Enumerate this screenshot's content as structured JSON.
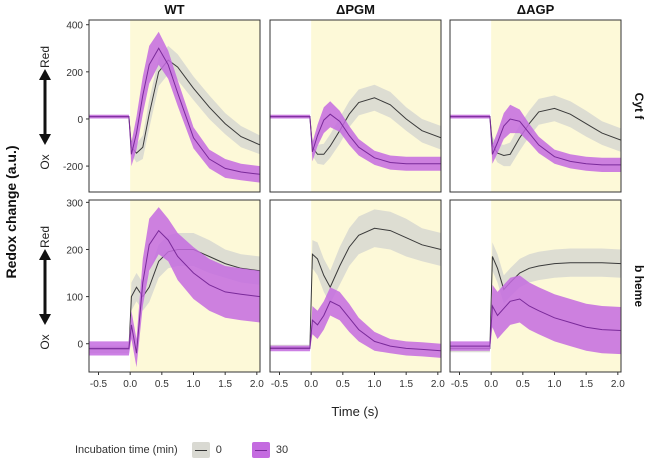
{
  "y_title": "Redox change (a.u.)",
  "x_title": "Time (s)",
  "column_titles": [
    "WT",
    "ΔPGM",
    "ΔAGP"
  ],
  "row_titles": [
    "Cyt f",
    "b heme"
  ],
  "arrow_labels": {
    "top": "Red",
    "bottom": "Ox"
  },
  "legend": {
    "title": "Incubation time (min)",
    "items": [
      "0",
      "30"
    ]
  },
  "colors": {
    "band0": "#d9d9d2",
    "line0": "#3a3a3a",
    "band1": "#c46be0",
    "line1": "#7a2a9a",
    "shade": "#fdf9d8"
  },
  "chart_data": [
    {
      "type": "line",
      "row": "Cyt f",
      "x_ticks": [
        "-0.5",
        "0.0",
        "0.5",
        "1.0",
        "1.5",
        "2.0"
      ],
      "xlim": [
        -0.65,
        2.05
      ],
      "y_ticks": [
        "400",
        "200",
        "0",
        "-200"
      ],
      "ylim": [
        -310,
        420
      ],
      "shaded_from": 0.0,
      "panels": [
        {
          "column": "WT",
          "series": [
            {
              "name": "0",
              "x": [
                -0.65,
                -0.02,
                0.02,
                0.1,
                0.2,
                0.3,
                0.45,
                0.6,
                0.75,
                1.0,
                1.25,
                1.5,
                1.75,
                2.05
              ],
              "y": [
                10,
                10,
                -120,
                -145,
                -120,
                20,
                200,
                250,
                220,
                130,
                50,
                -20,
                -75,
                -110
              ],
              "band": [
                8,
                8,
                30,
                40,
                50,
                60,
                60,
                60,
                55,
                50,
                50,
                45,
                45,
                40
              ]
            },
            {
              "name": "30",
              "x": [
                -0.65,
                -0.02,
                0.02,
                0.1,
                0.2,
                0.3,
                0.45,
                0.6,
                0.75,
                1.0,
                1.25,
                1.5,
                1.75,
                2.05
              ],
              "y": [
                10,
                10,
                -150,
                -60,
                100,
                230,
                300,
                230,
                110,
                -80,
                -170,
                -210,
                -225,
                -235
              ],
              "band": [
                8,
                8,
                50,
                70,
                80,
                80,
                70,
                60,
                55,
                45,
                40,
                40,
                35,
                35
              ]
            }
          ]
        },
        {
          "column": "ΔPGM",
          "series": [
            {
              "name": "0",
              "x": [
                -0.65,
                -0.02,
                0.02,
                0.1,
                0.2,
                0.3,
                0.45,
                0.6,
                0.75,
                1.0,
                1.25,
                1.5,
                1.75,
                2.05
              ],
              "y": [
                10,
                10,
                -120,
                -150,
                -150,
                -115,
                -50,
                20,
                70,
                90,
                60,
                0,
                -50,
                -80
              ],
              "band": [
                8,
                8,
                35,
                40,
                45,
                50,
                55,
                55,
                55,
                55,
                55,
                50,
                50,
                50
              ]
            },
            {
              "name": "30",
              "x": [
                -0.65,
                -0.02,
                0.02,
                0.1,
                0.2,
                0.3,
                0.45,
                0.6,
                0.75,
                1.0,
                1.25,
                1.5,
                1.75,
                2.05
              ],
              "y": [
                10,
                10,
                -140,
                -70,
                -5,
                20,
                -10,
                -70,
                -120,
                -165,
                -185,
                -190,
                -190,
                -190
              ],
              "band": [
                8,
                8,
                40,
                45,
                55,
                55,
                45,
                40,
                35,
                30,
                30,
                30,
                30,
                30
              ]
            }
          ]
        },
        {
          "column": "ΔAGP",
          "series": [
            {
              "name": "0",
              "x": [
                -0.65,
                -0.02,
                0.02,
                0.1,
                0.2,
                0.3,
                0.45,
                0.6,
                0.75,
                1.0,
                1.25,
                1.5,
                1.75,
                2.05
              ],
              "y": [
                10,
                10,
                -110,
                -145,
                -155,
                -150,
                -80,
                -20,
                30,
                45,
                20,
                -20,
                -60,
                -90
              ],
              "band": [
                8,
                8,
                35,
                40,
                45,
                50,
                55,
                55,
                55,
                55,
                55,
                55,
                50,
                50
              ]
            },
            {
              "name": "30",
              "x": [
                -0.65,
                -0.02,
                0.02,
                0.1,
                0.2,
                0.3,
                0.45,
                0.6,
                0.75,
                1.0,
                1.25,
                1.5,
                1.75,
                2.05
              ],
              "y": [
                10,
                10,
                -150,
                -100,
                -30,
                0,
                -10,
                -60,
                -110,
                -160,
                -180,
                -190,
                -195,
                -195
              ],
              "band": [
                8,
                8,
                40,
                45,
                55,
                60,
                50,
                40,
                35,
                30,
                30,
                30,
                30,
                30
              ]
            }
          ]
        }
      ]
    },
    {
      "type": "line",
      "row": "b heme",
      "x_ticks": [
        "-0.5",
        "0.0",
        "0.5",
        "1.0",
        "1.5",
        "2.0"
      ],
      "xlim": [
        -0.65,
        2.05
      ],
      "y_ticks": [
        "300",
        "200",
        "100",
        "0"
      ],
      "ylim": [
        -60,
        305
      ],
      "shaded_from": 0.0,
      "panels": [
        {
          "column": "WT",
          "series": [
            {
              "name": "0",
              "x": [
                -0.65,
                -0.02,
                0.02,
                0.1,
                0.2,
                0.3,
                0.45,
                0.6,
                0.75,
                1.0,
                1.25,
                1.5,
                1.75,
                2.05
              ],
              "y": [
                -12,
                -12,
                100,
                120,
                100,
                120,
                175,
                195,
                200,
                200,
                185,
                170,
                160,
                155
              ],
              "band": [
                8,
                8,
                30,
                30,
                30,
                32,
                35,
                35,
                35,
                35,
                35,
                30,
                30,
                30
              ]
            },
            {
              "name": "30",
              "x": [
                -0.65,
                -0.02,
                0.02,
                0.1,
                0.2,
                0.3,
                0.45,
                0.6,
                0.75,
                1.0,
                1.25,
                1.5,
                1.75,
                2.05
              ],
              "y": [
                -10,
                -10,
                40,
                -20,
                130,
                210,
                240,
                220,
                185,
                150,
                125,
                110,
                105,
                100
              ],
              "band": [
                15,
                15,
                30,
                30,
                50,
                55,
                50,
                45,
                50,
                55,
                55,
                55,
                55,
                55
              ]
            }
          ]
        },
        {
          "column": "ΔPGM",
          "series": [
            {
              "name": "0",
              "x": [
                -0.65,
                -0.02,
                0.02,
                0.1,
                0.2,
                0.3,
                0.45,
                0.6,
                0.75,
                1.0,
                1.25,
                1.5,
                1.75,
                2.05
              ],
              "y": [
                -8,
                -8,
                190,
                180,
                145,
                120,
                165,
                205,
                230,
                245,
                240,
                225,
                210,
                200
              ],
              "band": [
                6,
                6,
                30,
                35,
                35,
                35,
                40,
                40,
                40,
                40,
                40,
                40,
                35,
                35
              ]
            },
            {
              "name": "30",
              "x": [
                -0.65,
                -0.02,
                0.02,
                0.1,
                0.2,
                0.3,
                0.45,
                0.6,
                0.75,
                1.0,
                1.25,
                1.5,
                1.75,
                2.05
              ],
              "y": [
                -10,
                -10,
                50,
                40,
                60,
                90,
                80,
                55,
                30,
                5,
                -5,
                -10,
                -12,
                -15
              ],
              "band": [
                6,
                6,
                30,
                30,
                30,
                30,
                30,
                30,
                25,
                20,
                15,
                15,
                15,
                15
              ]
            }
          ]
        },
        {
          "column": "ΔAGP",
          "series": [
            {
              "name": "0",
              "x": [
                -0.65,
                -0.02,
                0.02,
                0.1,
                0.2,
                0.3,
                0.45,
                0.6,
                0.75,
                1.0,
                1.25,
                1.5,
                1.75,
                2.05
              ],
              "y": [
                -10,
                -10,
                185,
                160,
                115,
                130,
                150,
                160,
                165,
                170,
                172,
                172,
                172,
                170
              ],
              "band": [
                8,
                8,
                30,
                30,
                30,
                30,
                30,
                30,
                30,
                30,
                30,
                30,
                30,
                30
              ]
            },
            {
              "name": "30",
              "x": [
                -0.65,
                -0.02,
                0.02,
                0.1,
                0.2,
                0.3,
                0.45,
                0.6,
                0.75,
                1.0,
                1.25,
                1.5,
                1.75,
                2.05
              ],
              "y": [
                -5,
                -5,
                80,
                60,
                75,
                90,
                95,
                80,
                70,
                55,
                45,
                35,
                30,
                28
              ],
              "band": [
                10,
                10,
                45,
                50,
                50,
                50,
                50,
                50,
                50,
                50,
                50,
                50,
                50,
                50
              ]
            }
          ]
        }
      ]
    }
  ]
}
